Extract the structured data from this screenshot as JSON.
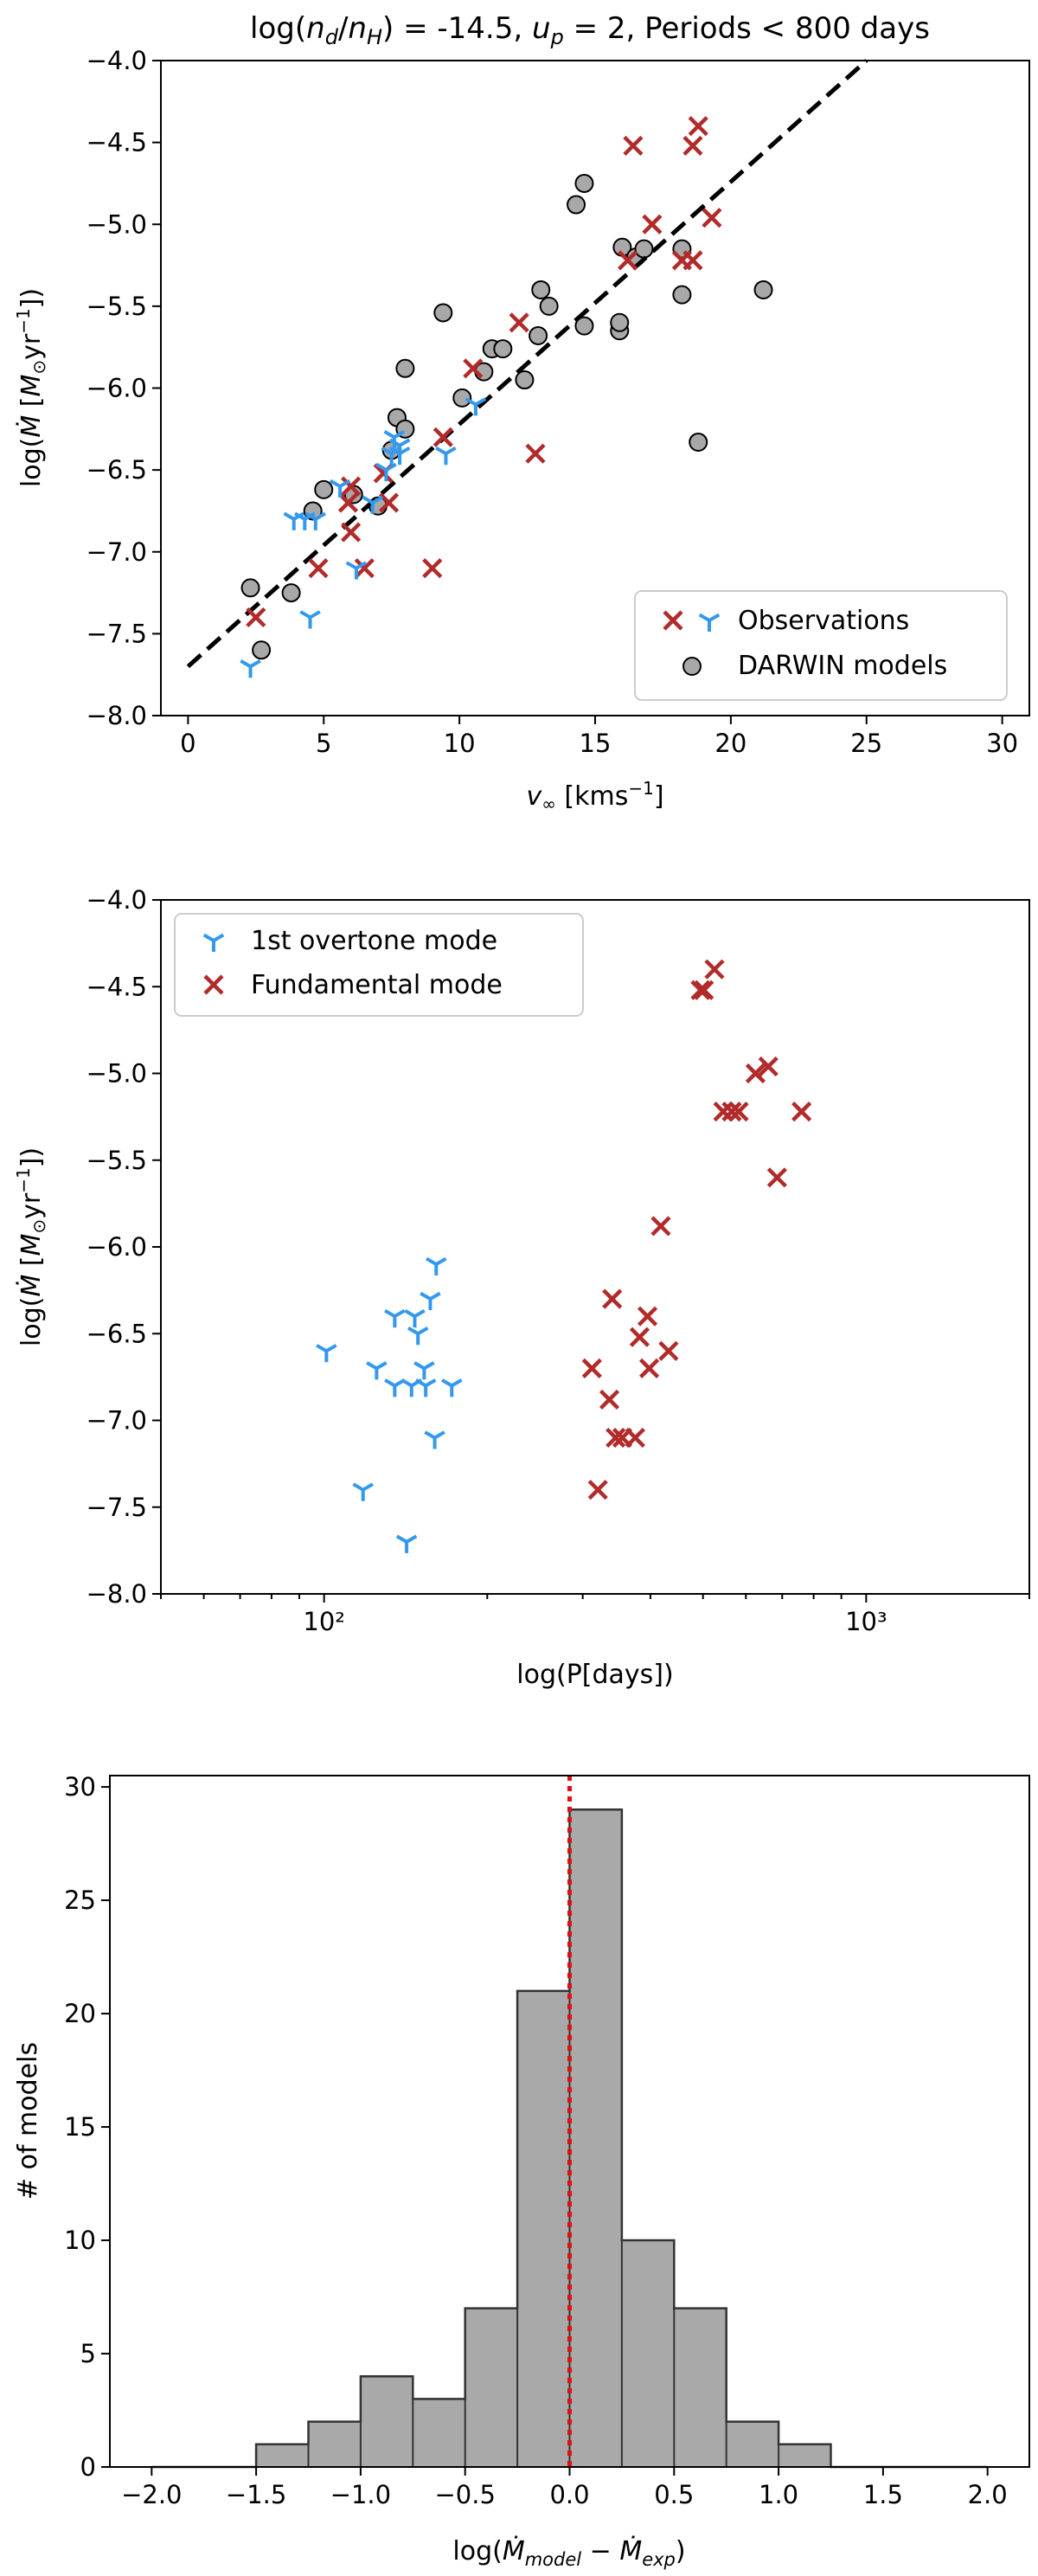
{
  "colors": {
    "obs_red": "#b22b2b",
    "obs_blue": "#3399ee",
    "model_fill": "#a8a8a8",
    "hist_fill": "#a9a9a9",
    "zero_line": "#e01010"
  },
  "chart_data": [
    {
      "type": "scatter",
      "title": "log(n_d/n_H) = -14.5, u_p =  2, Periods < 800 days",
      "title_parts": [
        "log(",
        "n",
        "d",
        "/",
        "n",
        "H",
        ") = -14.5, ",
        "u",
        "p",
        " =  2, Periods < 800 days"
      ],
      "xlabel": "v∞ [kms⁻¹]",
      "ylabel": "log(Ṁ [M⊙yr⁻¹])",
      "xlim": [
        -1,
        31
      ],
      "ylim": [
        -8.0,
        -4.0
      ],
      "xticks": [
        0,
        5,
        10,
        15,
        20,
        25,
        30
      ],
      "yticks": [
        -8.0,
        -7.5,
        -7.0,
        -6.5,
        -6.0,
        -5.5,
        -5.0,
        -4.5,
        -4.0
      ],
      "xtick_labels": [
        "0",
        "5",
        "10",
        "15",
        "20",
        "25",
        "30"
      ],
      "ytick_labels": [
        "−8.0",
        "−7.5",
        "−7.0",
        "−6.5",
        "−6.0",
        "−5.5",
        "−5.0",
        "−4.5",
        "−4.0"
      ],
      "legend": [
        "Observations",
        "DARWIN models"
      ],
      "legend_position": "lower right",
      "fit_line": {
        "x": [
          0,
          25
        ],
        "y": [
          -7.7,
          -4.0
        ]
      },
      "series": [
        {
          "name": "DARWIN models",
          "marker": "circle",
          "points": [
            [
              2.3,
              -7.22
            ],
            [
              2.7,
              -7.6
            ],
            [
              3.8,
              -7.25
            ],
            [
              4.6,
              -6.75
            ],
            [
              5.0,
              -6.62
            ],
            [
              6.1,
              -6.65
            ],
            [
              7.0,
              -6.72
            ],
            [
              7.5,
              -6.38
            ],
            [
              7.7,
              -6.18
            ],
            [
              8.0,
              -5.88
            ],
            [
              8.0,
              -6.25
            ],
            [
              9.4,
              -5.54
            ],
            [
              10.1,
              -6.06
            ],
            [
              10.9,
              -5.9
            ],
            [
              11.2,
              -5.76
            ],
            [
              11.6,
              -5.76
            ],
            [
              12.4,
              -5.95
            ],
            [
              12.9,
              -5.68
            ],
            [
              13.0,
              -5.4
            ],
            [
              13.3,
              -5.5
            ],
            [
              14.3,
              -4.88
            ],
            [
              14.6,
              -4.75
            ],
            [
              14.6,
              -5.62
            ],
            [
              15.9,
              -5.65
            ],
            [
              15.9,
              -5.6
            ],
            [
              16.0,
              -5.14
            ],
            [
              16.5,
              -5.2
            ],
            [
              16.8,
              -5.15
            ],
            [
              18.2,
              -5.43
            ],
            [
              18.2,
              -5.15
            ],
            [
              18.8,
              -6.33
            ],
            [
              21.2,
              -5.4
            ]
          ]
        },
        {
          "name": "Observations (fundamental)",
          "marker": "x",
          "points": [
            [
              2.5,
              -7.4
            ],
            [
              4.8,
              -7.1
            ],
            [
              5.9,
              -6.7
            ],
            [
              6.0,
              -6.6
            ],
            [
              6.0,
              -6.88
            ],
            [
              6.5,
              -7.1
            ],
            [
              7.2,
              -6.52
            ],
            [
              7.4,
              -6.7
            ],
            [
              9.0,
              -7.1
            ],
            [
              9.4,
              -6.3
            ],
            [
              10.5,
              -5.88
            ],
            [
              12.8,
              -6.4
            ],
            [
              12.2,
              -5.6
            ],
            [
              16.2,
              -5.22
            ],
            [
              16.4,
              -4.52
            ],
            [
              17.1,
              -5.0
            ],
            [
              18.2,
              -5.22
            ],
            [
              18.6,
              -5.22
            ],
            [
              18.6,
              -4.52
            ],
            [
              18.8,
              -4.4
            ],
            [
              19.3,
              -4.96
            ]
          ]
        },
        {
          "name": "Observations (1st overtone)",
          "marker": "tri_down",
          "points": [
            [
              2.3,
              -7.7
            ],
            [
              3.9,
              -6.8
            ],
            [
              4.3,
              -6.8
            ],
            [
              4.5,
              -7.4
            ],
            [
              4.7,
              -6.8
            ],
            [
              5.6,
              -6.6
            ],
            [
              6.2,
              -7.1
            ],
            [
              6.8,
              -6.7
            ],
            [
              7.3,
              -6.5
            ],
            [
              7.5,
              -6.4
            ],
            [
              7.6,
              -6.3
            ],
            [
              7.8,
              -6.35
            ],
            [
              7.8,
              -6.4
            ],
            [
              9.5,
              -6.4
            ],
            [
              10.6,
              -6.1
            ]
          ]
        }
      ]
    },
    {
      "type": "scatter",
      "xscale": "log",
      "xlabel": "log(P[days])",
      "ylabel": "log(Ṁ [M⊙yr⁻¹])",
      "xlim": [
        50,
        2000
      ],
      "ylim": [
        -8.0,
        -4.0
      ],
      "xticks": [
        100,
        1000
      ],
      "xtick_labels": [
        "10²",
        "10³"
      ],
      "yticks": [
        -8.0,
        -7.5,
        -7.0,
        -6.5,
        -6.0,
        -5.5,
        -5.0,
        -4.5,
        -4.0
      ],
      "ytick_labels": [
        "−8.0",
        "−7.5",
        "−7.0",
        "−6.5",
        "−6.0",
        "−5.5",
        "−5.0",
        "−4.5",
        "−4.0"
      ],
      "legend": [
        "1st overtone mode",
        "Fundamental mode"
      ],
      "legend_position": "upper left",
      "series": [
        {
          "name": "1st overtone mode",
          "marker": "tri_down",
          "points": [
            [
              101,
              -6.6
            ],
            [
              118,
              -7.4
            ],
            [
              125,
              -6.7
            ],
            [
              135,
              -6.8
            ],
            [
              135,
              -6.4
            ],
            [
              142,
              -7.7
            ],
            [
              145,
              -6.8
            ],
            [
              147,
              -6.4
            ],
            [
              149,
              -6.5
            ],
            [
              153,
              -6.7
            ],
            [
              154,
              -6.8
            ],
            [
              157,
              -6.3
            ],
            [
              160,
              -7.1
            ],
            [
              161,
              -6.1
            ],
            [
              172,
              -6.8
            ]
          ]
        },
        {
          "name": "Fundamental mode",
          "marker": "x",
          "points": [
            [
              312,
              -6.7
            ],
            [
              320,
              -7.4
            ],
            [
              336,
              -6.88
            ],
            [
              340,
              -6.3
            ],
            [
              345,
              -7.1
            ],
            [
              355,
              -7.1
            ],
            [
              375,
              -7.1
            ],
            [
              382,
              -6.52
            ],
            [
              395,
              -6.4
            ],
            [
              398,
              -6.7
            ],
            [
              418,
              -5.88
            ],
            [
              432,
              -6.6
            ],
            [
              495,
              -4.52
            ],
            [
              502,
              -4.52
            ],
            [
              525,
              -4.4
            ],
            [
              545,
              -5.22
            ],
            [
              565,
              -5.22
            ],
            [
              582,
              -5.22
            ],
            [
              625,
              -5.0
            ],
            [
              660,
              -4.96
            ],
            [
              685,
              -5.6
            ],
            [
              760,
              -5.22
            ]
          ]
        }
      ]
    },
    {
      "type": "histogram",
      "xlabel": "log(Ṁ_model − Ṁ_exp)",
      "ylabel": "# of models",
      "xlim": [
        -2.2,
        2.2
      ],
      "ylim": [
        0,
        30.5
      ],
      "xticks": [
        -2.0,
        -1.5,
        -1.0,
        -0.5,
        0.0,
        0.5,
        1.0,
        1.5,
        2.0
      ],
      "xtick_labels": [
        "−2.0",
        "−1.5",
        "−1.0",
        "−0.5",
        "0.0",
        "0.5",
        "1.0",
        "1.5",
        "2.0"
      ],
      "yticks": [
        0,
        5,
        10,
        15,
        20,
        25,
        30
      ],
      "ytick_labels": [
        "0",
        "5",
        "10",
        "15",
        "20",
        "25",
        "30"
      ],
      "bin_edges": [
        -2.0,
        -1.75,
        -1.5,
        -1.25,
        -1.0,
        -0.75,
        -0.5,
        -0.25,
        0.0,
        0.25,
        0.5,
        0.75,
        1.0,
        1.25,
        1.5,
        1.75,
        2.0
      ],
      "counts": [
        0,
        0,
        1,
        2,
        4,
        3,
        7,
        21,
        29,
        10,
        7,
        2,
        1,
        0,
        0,
        0
      ],
      "vline": 0.0
    }
  ]
}
